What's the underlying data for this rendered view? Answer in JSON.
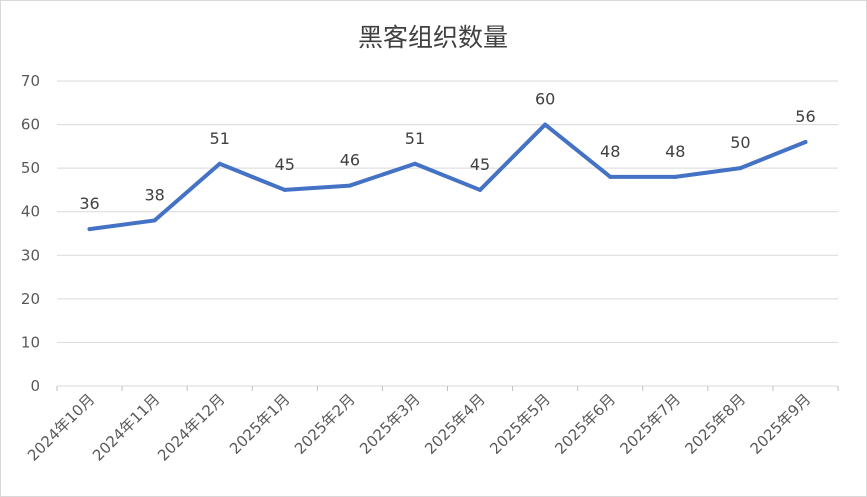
{
  "chart_data": {
    "type": "line",
    "title": "黑客组织数量",
    "categories": [
      "2024年10月",
      "2024年11月",
      "2024年12月",
      "2025年1月",
      "2025年2月",
      "2025年3月",
      "2025年4月",
      "2025年5月",
      "2025年6月",
      "2025年7月",
      "2025年8月",
      "2025年9月"
    ],
    "values": [
      36,
      38,
      51,
      45,
      46,
      51,
      45,
      60,
      48,
      48,
      50,
      56
    ],
    "ylim": [
      0,
      70
    ],
    "yticks": [
      0,
      10,
      20,
      30,
      40,
      50,
      60,
      70
    ],
    "grid": true,
    "legend": "none",
    "data_labels": true,
    "colors": {
      "line": "#4472C4",
      "grid": "#d9d9d9",
      "text": "#595959"
    }
  }
}
